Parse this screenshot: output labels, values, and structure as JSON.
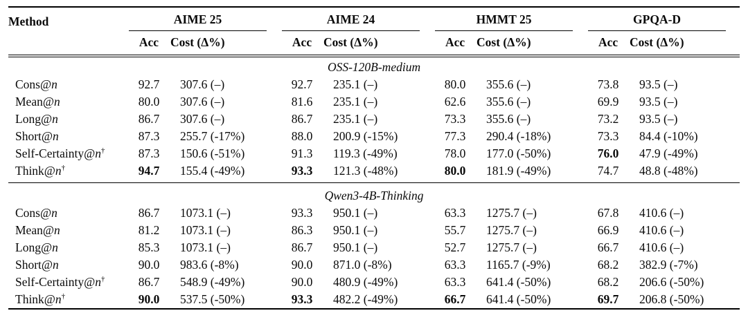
{
  "table": {
    "method_header": "Method",
    "groups": [
      {
        "label": "AIME 25"
      },
      {
        "label": "AIME 24"
      },
      {
        "label": "HMMT 25"
      },
      {
        "label": "GPQA-D"
      }
    ],
    "subheaders": {
      "acc": "Acc",
      "cost": "Cost (Δ%)"
    },
    "sections": [
      {
        "title": "OSS-120B-medium",
        "rows": [
          {
            "method_prefix": "Cons@",
            "method_var": "n",
            "dagger": "",
            "cells": [
              {
                "acc": "92.7",
                "cost": "307.6 (–)",
                "bold": false
              },
              {
                "acc": "92.7",
                "cost": "235.1 (–)",
                "bold": false
              },
              {
                "acc": "80.0",
                "cost": "355.6 (–)",
                "bold": false
              },
              {
                "acc": "73.8",
                "cost": "93.5 (–)",
                "bold": false
              }
            ]
          },
          {
            "method_prefix": "Mean@",
            "method_var": "n",
            "dagger": "",
            "cells": [
              {
                "acc": "80.0",
                "cost": "307.6 (–)",
                "bold": false
              },
              {
                "acc": "81.6",
                "cost": "235.1 (–)",
                "bold": false
              },
              {
                "acc": "62.6",
                "cost": "355.6 (–)",
                "bold": false
              },
              {
                "acc": "69.9",
                "cost": "93.5 (–)",
                "bold": false
              }
            ]
          },
          {
            "method_prefix": "Long@",
            "method_var": "n",
            "dagger": "",
            "cells": [
              {
                "acc": "86.7",
                "cost": "307.6 (–)",
                "bold": false
              },
              {
                "acc": "86.7",
                "cost": "235.1 (–)",
                "bold": false
              },
              {
                "acc": "73.3",
                "cost": "355.6 (–)",
                "bold": false
              },
              {
                "acc": "73.2",
                "cost": "93.5 (–)",
                "bold": false
              }
            ]
          },
          {
            "method_prefix": "Short@",
            "method_var": "n",
            "dagger": "",
            "cells": [
              {
                "acc": "87.3",
                "cost": "255.7 (-17%)",
                "bold": false
              },
              {
                "acc": "88.0",
                "cost": "200.9 (-15%)",
                "bold": false
              },
              {
                "acc": "77.3",
                "cost": "290.4 (-18%)",
                "bold": false
              },
              {
                "acc": "73.3",
                "cost": "84.4 (-10%)",
                "bold": false
              }
            ]
          },
          {
            "method_prefix": "Self-Certainty@",
            "method_var": "n",
            "dagger": "†",
            "cells": [
              {
                "acc": "87.3",
                "cost": "150.6 (-51%)",
                "bold": false
              },
              {
                "acc": "91.3",
                "cost": "119.3 (-49%)",
                "bold": false
              },
              {
                "acc": "78.0",
                "cost": "177.0 (-50%)",
                "bold": false
              },
              {
                "acc": "76.0",
                "cost": "47.9 (-49%)",
                "bold": true
              }
            ]
          },
          {
            "method_prefix": "Think@",
            "method_var": "n",
            "dagger": "†",
            "cells": [
              {
                "acc": "94.7",
                "cost": "155.4 (-49%)",
                "bold": true
              },
              {
                "acc": "93.3",
                "cost": "121.3 (-48%)",
                "bold": true
              },
              {
                "acc": "80.0",
                "cost": "181.9 (-49%)",
                "bold": true
              },
              {
                "acc": "74.7",
                "cost": "48.8 (-48%)",
                "bold": false
              }
            ]
          }
        ]
      },
      {
        "title": "Qwen3-4B-Thinking",
        "rows": [
          {
            "method_prefix": "Cons@",
            "method_var": "n",
            "dagger": "",
            "cells": [
              {
                "acc": "86.7",
                "cost": "1073.1 (–)",
                "bold": false
              },
              {
                "acc": "93.3",
                "cost": "950.1 (–)",
                "bold": false
              },
              {
                "acc": "63.3",
                "cost": "1275.7 (–)",
                "bold": false
              },
              {
                "acc": "67.8",
                "cost": "410.6 (–)",
                "bold": false
              }
            ]
          },
          {
            "method_prefix": "Mean@",
            "method_var": "n",
            "dagger": "",
            "cells": [
              {
                "acc": "81.2",
                "cost": "1073.1 (–)",
                "bold": false
              },
              {
                "acc": "86.3",
                "cost": "950.1 (–)",
                "bold": false
              },
              {
                "acc": "55.7",
                "cost": "1275.7 (–)",
                "bold": false
              },
              {
                "acc": "66.9",
                "cost": "410.6 (–)",
                "bold": false
              }
            ]
          },
          {
            "method_prefix": "Long@",
            "method_var": "n",
            "dagger": "",
            "cells": [
              {
                "acc": "85.3",
                "cost": "1073.1 (–)",
                "bold": false
              },
              {
                "acc": "86.7",
                "cost": "950.1 (–)",
                "bold": false
              },
              {
                "acc": "52.7",
                "cost": "1275.7 (–)",
                "bold": false
              },
              {
                "acc": "66.7",
                "cost": "410.6 (–)",
                "bold": false
              }
            ]
          },
          {
            "method_prefix": "Short@",
            "method_var": "n",
            "dagger": "",
            "cells": [
              {
                "acc": "90.0",
                "cost": "983.6 (-8%)",
                "bold": false
              },
              {
                "acc": "90.0",
                "cost": "871.0 (-8%)",
                "bold": false
              },
              {
                "acc": "63.3",
                "cost": "1165.7 (-9%)",
                "bold": false
              },
              {
                "acc": "68.2",
                "cost": "382.9 (-7%)",
                "bold": false
              }
            ]
          },
          {
            "method_prefix": "Self-Certainty@",
            "method_var": "n",
            "dagger": "†",
            "cells": [
              {
                "acc": "86.7",
                "cost": "548.9 (-49%)",
                "bold": false
              },
              {
                "acc": "90.0",
                "cost": "480.9 (-49%)",
                "bold": false
              },
              {
                "acc": "63.3",
                "cost": "641.4 (-50%)",
                "bold": false
              },
              {
                "acc": "68.2",
                "cost": "206.6 (-50%)",
                "bold": false
              }
            ]
          },
          {
            "method_prefix": "Think@",
            "method_var": "n",
            "dagger": "†",
            "cells": [
              {
                "acc": "90.0",
                "cost": "537.5 (-50%)",
                "bold": true
              },
              {
                "acc": "93.3",
                "cost": "482.2 (-49%)",
                "bold": true
              },
              {
                "acc": "66.7",
                "cost": "641.4 (-50%)",
                "bold": true
              },
              {
                "acc": "69.7",
                "cost": "206.8 (-50%)",
                "bold": true
              }
            ]
          }
        ]
      }
    ]
  }
}
